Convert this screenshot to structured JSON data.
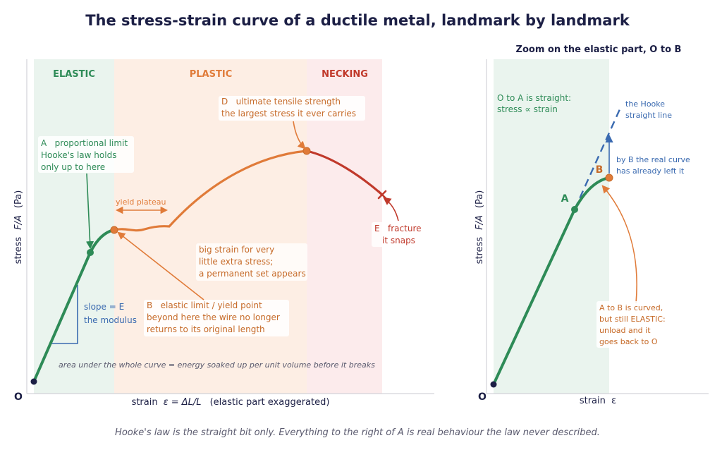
{
  "title": "The stress-strain curve of a ductile metal, landmark by landmark",
  "footer": "Hooke's law is the straight bit only. Everything to the right of A is real behaviour the law never described.",
  "colors": {
    "navy": "#1c1f45",
    "green": "#2e8b57",
    "orange": "#e07b39",
    "red": "#c0392b",
    "blue": "#3a6ab0",
    "elastic_band": "#eaf4ee",
    "plastic_band": "#fdeee4",
    "necking_band": "#fcebec",
    "annotation_orange": "#c66a28"
  },
  "left_panel": {
    "regions": {
      "elastic": "ELASTIC",
      "plastic": "PLASTIC",
      "necking": "NECKING"
    },
    "origin_label": "O",
    "ylabel_stress": "stress",
    "ylabel_fa": "F/A",
    "ylabel_unit": "(Pa)",
    "xlabel_main": "strain",
    "xlabel_formula": "ε = ΔL/L",
    "xlabel_note": "(elastic part exaggerated)",
    "point_a": [
      "A   proportional limit",
      "Hooke's law holds",
      "only up to here"
    ],
    "point_b": [
      "B   elastic limit / yield point",
      "beyond here the wire no longer",
      "returns to its original length"
    ],
    "point_d": [
      "D   ultimate tensile strength",
      "the largest stress it ever carries"
    ],
    "point_e": [
      "E   fracture",
      "it snaps"
    ],
    "slope_lines": [
      "slope = E",
      "the modulus"
    ],
    "yield_plateau": "yield plateau",
    "big_strain": [
      "big strain for very",
      "little extra stress;",
      "a permanent set appears"
    ],
    "area_note": "area under the whole curve = energy soaked up per unit volume before it breaks"
  },
  "right_panel": {
    "title": "Zoom on the elastic part, O to B",
    "origin_label": "O",
    "ylabel_stress": "stress",
    "ylabel_fa": "F/A",
    "ylabel_unit": "(Pa)",
    "xlabel": "strain  ε",
    "oa_note": [
      "O to A is straight:",
      "stress ∝ strain"
    ],
    "hooke_line": [
      "the Hooke",
      "straight line"
    ],
    "by_b": [
      "by B the real curve",
      "has already left it"
    ],
    "label_a": "A",
    "label_b": "B",
    "ab_note": [
      "A to B is curved,",
      "but still ELASTIC:",
      "unload and it",
      "goes back to O"
    ]
  }
}
